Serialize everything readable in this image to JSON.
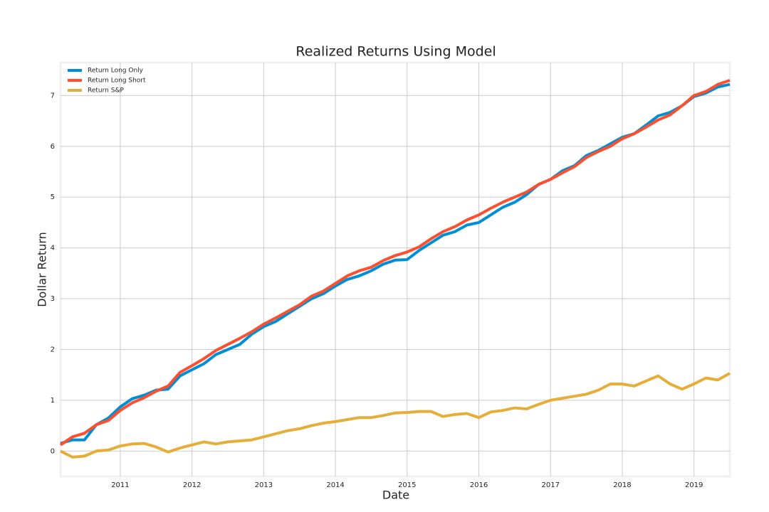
{
  "chart_data": {
    "type": "line",
    "title": "Realized Returns Using Model",
    "xlabel": "Date",
    "ylabel": "Dollar Return",
    "x": [
      "2010-03",
      "2010-05",
      "2010-07",
      "2010-09",
      "2010-11",
      "2011-01",
      "2011-03",
      "2011-05",
      "2011-07",
      "2011-09",
      "2011-11",
      "2012-01",
      "2012-03",
      "2012-05",
      "2012-07",
      "2012-09",
      "2012-11",
      "2013-01",
      "2013-03",
      "2013-05",
      "2013-07",
      "2013-09",
      "2013-11",
      "2014-01",
      "2014-03",
      "2014-05",
      "2014-07",
      "2014-09",
      "2014-11",
      "2015-01",
      "2015-03",
      "2015-05",
      "2015-07",
      "2015-09",
      "2015-11",
      "2016-01",
      "2016-03",
      "2016-05",
      "2016-07",
      "2016-09",
      "2016-11",
      "2017-01",
      "2017-03",
      "2017-05",
      "2017-07",
      "2017-09",
      "2017-11",
      "2018-01",
      "2018-03",
      "2018-05",
      "2018-07",
      "2018-09",
      "2018-11",
      "2019-01",
      "2019-03",
      "2019-05",
      "2019-07"
    ],
    "series": [
      {
        "name": "Return Long Only",
        "color": "#008fd5",
        "values": [
          0.15,
          0.22,
          0.22,
          0.52,
          0.65,
          0.87,
          1.03,
          1.1,
          1.2,
          1.22,
          1.48,
          1.6,
          1.72,
          1.9,
          2.0,
          2.1,
          2.3,
          2.45,
          2.55,
          2.7,
          2.85,
          3.0,
          3.1,
          3.25,
          3.38,
          3.45,
          3.55,
          3.68,
          3.76,
          3.77,
          3.95,
          4.1,
          4.25,
          4.32,
          4.45,
          4.5,
          4.65,
          4.8,
          4.9,
          5.05,
          5.25,
          5.35,
          5.52,
          5.62,
          5.82,
          5.92,
          6.05,
          6.18,
          6.25,
          6.42,
          6.6,
          6.67,
          6.8,
          6.98,
          7.05,
          7.17,
          7.22
        ]
      },
      {
        "name": "Return Long Short",
        "color": "#fc4f30",
        "values": [
          0.12,
          0.28,
          0.35,
          0.52,
          0.6,
          0.8,
          0.95,
          1.05,
          1.18,
          1.28,
          1.55,
          1.68,
          1.82,
          1.98,
          2.1,
          2.22,
          2.35,
          2.5,
          2.62,
          2.75,
          2.88,
          3.05,
          3.15,
          3.3,
          3.45,
          3.55,
          3.62,
          3.75,
          3.85,
          3.92,
          4.02,
          4.18,
          4.32,
          4.42,
          4.55,
          4.65,
          4.78,
          4.9,
          5.0,
          5.1,
          5.25,
          5.35,
          5.48,
          5.6,
          5.78,
          5.9,
          6.0,
          6.15,
          6.25,
          6.38,
          6.52,
          6.62,
          6.8,
          7.0,
          7.08,
          7.22,
          7.3
        ]
      },
      {
        "name": "Return S&P",
        "color": "#e5ae38",
        "values": [
          0.0,
          -0.12,
          -0.1,
          0.0,
          0.02,
          0.1,
          0.14,
          0.15,
          0.08,
          -0.02,
          0.06,
          0.12,
          0.18,
          0.14,
          0.18,
          0.2,
          0.22,
          0.28,
          0.34,
          0.4,
          0.44,
          0.5,
          0.55,
          0.58,
          0.62,
          0.66,
          0.66,
          0.7,
          0.75,
          0.76,
          0.78,
          0.78,
          0.68,
          0.72,
          0.74,
          0.66,
          0.77,
          0.8,
          0.85,
          0.83,
          0.92,
          1.0,
          1.04,
          1.08,
          1.12,
          1.2,
          1.32,
          1.32,
          1.28,
          1.38,
          1.48,
          1.32,
          1.22,
          1.32,
          1.44,
          1.4,
          1.53
        ]
      }
    ],
    "xlim": [
      "2010-03",
      "2019-07"
    ],
    "xticks": [
      "2011",
      "2012",
      "2013",
      "2014",
      "2015",
      "2016",
      "2017",
      "2018",
      "2019"
    ],
    "ylim": [
      -0.5,
      7.65
    ],
    "yticks": [
      0,
      1,
      2,
      3,
      4,
      5,
      6,
      7
    ],
    "grid": true,
    "legend": "upper left"
  }
}
